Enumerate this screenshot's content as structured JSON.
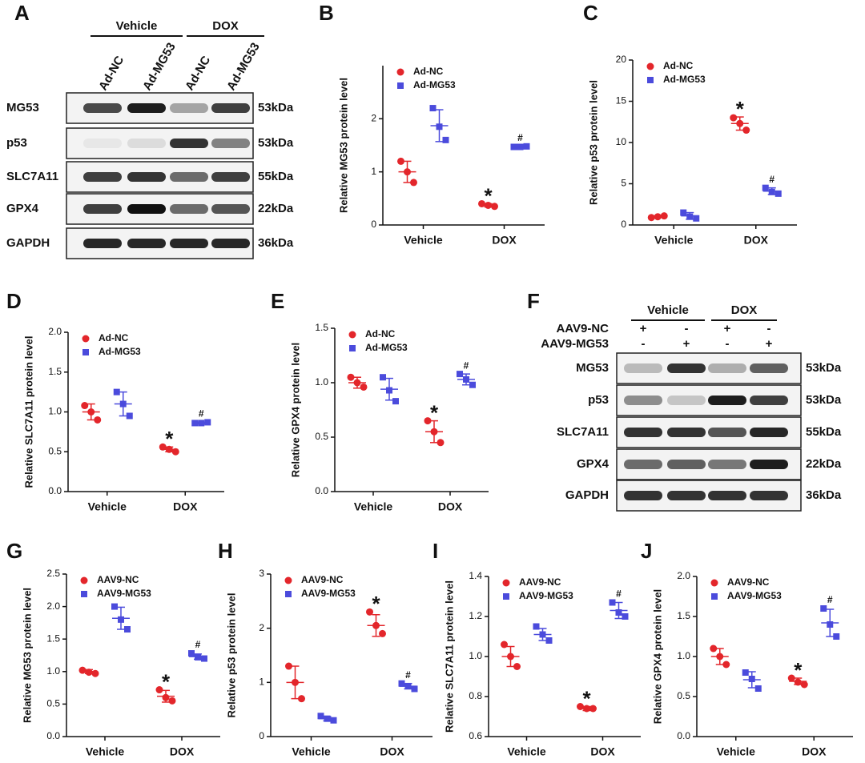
{
  "blots": [
    {
      "panel": "A",
      "groups": [
        {
          "label": "Vehicle"
        },
        {
          "label": "DOX"
        }
      ],
      "lanes": [
        "Ad-NC",
        "Ad-MG53",
        "Ad-NC",
        "Ad-MG53"
      ],
      "rows": [
        {
          "protein": "MG53",
          "size": "53kDa"
        },
        {
          "protein": "p53",
          "size": "53kDa"
        },
        {
          "protein": "SLC7A11",
          "size": "55kDa"
        },
        {
          "protein": "GPX4",
          "size": "22kDa"
        },
        {
          "protein": "GAPDH",
          "size": "36kDa"
        }
      ]
    },
    {
      "panel": "F",
      "groups": [
        {
          "label": "Vehicle"
        },
        {
          "label": "DOX"
        }
      ],
      "treatments": [
        {
          "name": "AAV9-NC",
          "marks": [
            "+",
            "-",
            "+",
            "-"
          ]
        },
        {
          "name": "AAV9-MG53",
          "marks": [
            "-",
            "+",
            "-",
            "+"
          ]
        }
      ],
      "rows": [
        {
          "protein": "MG53",
          "size": "53kDa"
        },
        {
          "protein": "p53",
          "size": "53kDa"
        },
        {
          "protein": "SLC7A11",
          "size": "55kDa"
        },
        {
          "protein": "GPX4",
          "size": "22kDa"
        },
        {
          "protein": "GAPDH",
          "size": "36kDa"
        }
      ]
    }
  ],
  "chart_data": [
    {
      "type": "dot",
      "panel": "B",
      "ylabel": "Relative MG53 protein level",
      "categories": [
        "Vehicle",
        "DOX"
      ],
      "ylim": [
        0,
        3
      ],
      "yticks": [
        0,
        1,
        2
      ],
      "series": [
        {
          "name": "Ad-NC",
          "color": "#e3262b",
          "marker": "circle",
          "values": [
            1.0,
            0.37
          ],
          "errors": [
            0.2,
            0.03
          ],
          "points": [
            [
              1.2,
              1.0,
              0.8
            ],
            [
              0.4,
              0.37,
              0.35
            ]
          ],
          "sig": [
            null,
            "*"
          ]
        },
        {
          "name": "Ad-MG53",
          "color": "#4b4bdc",
          "marker": "square",
          "values": [
            1.87,
            1.47
          ],
          "errors": [
            0.3,
            0.01
          ],
          "points": [
            [
              2.2,
              1.85,
              1.6
            ],
            [
              1.47,
              1.47,
              1.48
            ]
          ],
          "sig": [
            null,
            "#"
          ]
        }
      ]
    },
    {
      "type": "dot",
      "panel": "C",
      "ylabel": "Relative p53 protein level",
      "categories": [
        "Vehicle",
        "DOX"
      ],
      "ylim": [
        0,
        20
      ],
      "yticks": [
        0,
        5,
        10,
        15,
        20
      ],
      "series": [
        {
          "name": "Ad-NC",
          "color": "#e3262b",
          "marker": "circle",
          "values": [
            1.0,
            12.3
          ],
          "errors": [
            0.1,
            0.8
          ],
          "points": [
            [
              0.9,
              1.0,
              1.1
            ],
            [
              13.0,
              12.3,
              11.5
            ]
          ],
          "sig": [
            null,
            "*"
          ]
        },
        {
          "name": "Ad-MG53",
          "color": "#4b4bdc",
          "marker": "square",
          "values": [
            1.1,
            4.1
          ],
          "errors": [
            0.4,
            0.4
          ],
          "points": [
            [
              1.5,
              1.0,
              0.8
            ],
            [
              4.5,
              4.0,
              3.8
            ]
          ],
          "sig": [
            null,
            "#"
          ]
        }
      ]
    },
    {
      "type": "dot",
      "panel": "D",
      "ylabel": "Relative SLC7A11 protein level",
      "categories": [
        "Vehicle",
        "DOX"
      ],
      "ylim": [
        0,
        2
      ],
      "yticks": [
        {
          "value": 0,
          "label": "0.0"
        },
        0.5,
        {
          "value": 1,
          "label": "1.0"
        },
        1.5,
        {
          "value": 2,
          "label": "2.0"
        }
      ],
      "series": [
        {
          "name": "Ad-NC",
          "color": "#e3262b",
          "marker": "circle",
          "values": [
            1.0,
            0.53
          ],
          "errors": [
            0.1,
            0.03
          ],
          "points": [
            [
              1.08,
              1.0,
              0.9
            ],
            [
              0.56,
              0.53,
              0.5
            ]
          ],
          "sig": [
            null,
            "*"
          ]
        },
        {
          "name": "Ad-MG53",
          "color": "#4b4bdc",
          "marker": "square",
          "values": [
            1.1,
            0.86
          ],
          "errors": [
            0.15,
            0.01
          ],
          "points": [
            [
              1.25,
              1.1,
              0.95
            ],
            [
              0.86,
              0.86,
              0.87
            ]
          ],
          "sig": [
            null,
            "#"
          ]
        }
      ]
    },
    {
      "type": "dot",
      "panel": "E",
      "ylabel": "Relative GPX4 protein level",
      "categories": [
        "Vehicle",
        "DOX"
      ],
      "ylim": [
        0,
        1.5
      ],
      "yticks": [
        {
          "value": 0,
          "label": "0.0"
        },
        0.5,
        {
          "value": 1,
          "label": "1.0"
        },
        1.5
      ],
      "series": [
        {
          "name": "Ad-NC",
          "color": "#e3262b",
          "marker": "circle",
          "values": [
            1.0,
            0.55
          ],
          "errors": [
            0.05,
            0.1
          ],
          "points": [
            [
              1.05,
              1.0,
              0.96
            ],
            [
              0.65,
              0.55,
              0.45
            ]
          ],
          "sig": [
            null,
            "*"
          ]
        },
        {
          "name": "Ad-MG53",
          "color": "#4b4bdc",
          "marker": "square",
          "values": [
            0.94,
            1.03
          ],
          "errors": [
            0.1,
            0.05
          ],
          "points": [
            [
              1.05,
              0.93,
              0.83
            ],
            [
              1.08,
              1.03,
              0.98
            ]
          ],
          "sig": [
            null,
            "#"
          ]
        }
      ]
    },
    {
      "type": "dot",
      "panel": "G",
      "ylabel": "Relative MG53 protein level",
      "categories": [
        "Vehicle",
        "DOX"
      ],
      "ylim": [
        0,
        2.5
      ],
      "yticks": [
        {
          "value": 0,
          "label": "0.0"
        },
        0.5,
        {
          "value": 1,
          "label": "1.0"
        },
        1.5,
        {
          "value": 2,
          "label": "2.0"
        },
        2.5
      ],
      "series": [
        {
          "name": "AAV9-NC",
          "color": "#e3262b",
          "marker": "circle",
          "values": [
            1.0,
            0.62
          ],
          "errors": [
            0.03,
            0.09
          ],
          "points": [
            [
              1.02,
              0.99,
              0.97
            ],
            [
              0.72,
              0.6,
              0.55
            ]
          ],
          "sig": [
            null,
            "*"
          ]
        },
        {
          "name": "AAV9-MG53",
          "color": "#4b4bdc",
          "marker": "square",
          "values": [
            1.82,
            1.23
          ],
          "errors": [
            0.17,
            0.04
          ],
          "points": [
            [
              2.0,
              1.8,
              1.65
            ],
            [
              1.28,
              1.22,
              1.2
            ]
          ],
          "sig": [
            null,
            "#"
          ]
        }
      ]
    },
    {
      "type": "dot",
      "panel": "H",
      "ylabel": "Relative p53 protein level",
      "categories": [
        "Vehicle",
        "DOX"
      ],
      "ylim": [
        0,
        3
      ],
      "yticks": [
        0,
        1,
        2,
        3
      ],
      "series": [
        {
          "name": "AAV9-NC",
          "color": "#e3262b",
          "marker": "circle",
          "values": [
            1.0,
            2.05
          ],
          "errors": [
            0.3,
            0.2
          ],
          "points": [
            [
              1.3,
              1.0,
              0.7
            ],
            [
              2.3,
              2.05,
              1.9
            ]
          ],
          "sig": [
            null,
            "*"
          ]
        },
        {
          "name": "AAV9-MG53",
          "color": "#4b4bdc",
          "marker": "square",
          "values": [
            0.33,
            0.93
          ],
          "errors": [
            0.04,
            0.05
          ],
          "points": [
            [
              0.38,
              0.33,
              0.3
            ],
            [
              0.98,
              0.93,
              0.88
            ]
          ],
          "sig": [
            null,
            "#"
          ]
        }
      ]
    },
    {
      "type": "dot",
      "panel": "I",
      "ylabel": "Relative SLC7A11 protein level",
      "categories": [
        "Vehicle",
        "DOX"
      ],
      "ylim": [
        0.6,
        1.4
      ],
      "yticks": [
        0.6,
        0.8,
        {
          "value": 1,
          "label": "1.0"
        },
        1.2,
        1.4
      ],
      "series": [
        {
          "name": "AAV9-NC",
          "color": "#e3262b",
          "marker": "circle",
          "values": [
            1.0,
            0.74
          ],
          "errors": [
            0.05,
            0.01
          ],
          "points": [
            [
              1.06,
              1.0,
              0.95
            ],
            [
              0.75,
              0.74,
              0.74
            ]
          ],
          "sig": [
            null,
            "*"
          ]
        },
        {
          "name": "AAV9-MG53",
          "color": "#4b4bdc",
          "marker": "square",
          "values": [
            1.11,
            1.23
          ],
          "errors": [
            0.03,
            0.04
          ],
          "points": [
            [
              1.15,
              1.11,
              1.08
            ],
            [
              1.27,
              1.22,
              1.2
            ]
          ],
          "sig": [
            null,
            "#"
          ]
        }
      ]
    },
    {
      "type": "dot",
      "panel": "J",
      "ylabel": "Relative GPX4 protein level",
      "categories": [
        "Vehicle",
        "DOX"
      ],
      "ylim": [
        0,
        2
      ],
      "yticks": [
        {
          "value": 0,
          "label": "0.0"
        },
        0.5,
        {
          "value": 1,
          "label": "1.0"
        },
        1.5,
        {
          "value": 2,
          "label": "2.0"
        }
      ],
      "series": [
        {
          "name": "AAV9-NC",
          "color": "#e3262b",
          "marker": "circle",
          "values": [
            1.0,
            0.69
          ],
          "errors": [
            0.1,
            0.04
          ],
          "points": [
            [
              1.1,
              1.0,
              0.9
            ],
            [
              0.73,
              0.68,
              0.65
            ]
          ],
          "sig": [
            null,
            "*"
          ]
        },
        {
          "name": "AAV9-MG53",
          "color": "#4b4bdc",
          "marker": "square",
          "values": [
            0.71,
            1.42
          ],
          "errors": [
            0.1,
            0.17
          ],
          "points": [
            [
              0.8,
              0.72,
              0.6
            ],
            [
              1.6,
              1.4,
              1.25
            ]
          ],
          "sig": [
            null,
            "#"
          ]
        }
      ]
    }
  ]
}
